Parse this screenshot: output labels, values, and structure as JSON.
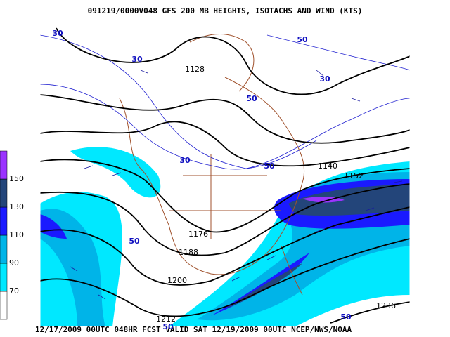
{
  "header": {
    "title": "091219/0000V048 GFS 200 MB  HEIGHTS, ISOTACHS AND WIND (KTS)"
  },
  "footer": {
    "text": "12/17/2009 00UTC 048HR FCST VALID SAT 12/19/2009 00UTC  NCEP/NWS/NOAA"
  },
  "legend": {
    "levels": [
      {
        "value": 70,
        "color": "#00e8ff"
      },
      {
        "value": 90,
        "color": "#00b4e8"
      },
      {
        "value": 110,
        "color": "#1a1aff"
      },
      {
        "value": 130,
        "color": "#23457a"
      },
      {
        "value": 150,
        "color": "#9b33ff"
      }
    ]
  },
  "height_labels": [
    "1128",
    "1140",
    "1152",
    "1176",
    "1188",
    "1200",
    "1212",
    "1236"
  ],
  "isotach_labels": [
    "30",
    "30",
    "50",
    "30",
    "50",
    "30",
    "50",
    "50",
    "50",
    "50"
  ]
}
